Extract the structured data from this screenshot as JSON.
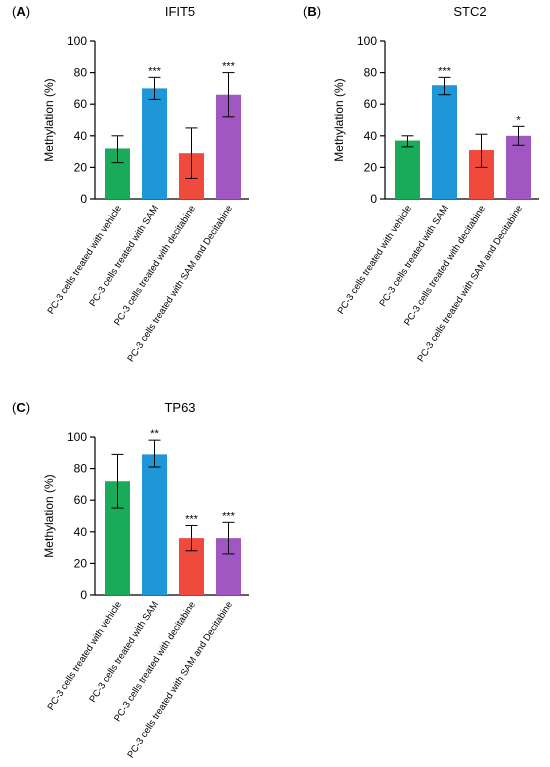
{
  "chart_data": [
    {
      "type": "bar",
      "panel_label": "(A)",
      "panel_letter": "A",
      "title": "IFIT5",
      "ylabel": "Methylation (%)",
      "ylim": [
        0,
        100
      ],
      "yticks": [
        0,
        20,
        40,
        60,
        80,
        100
      ],
      "categories": [
        "PC-3 cells treated with vehicle",
        "PC-3 cells treated with SAM",
        "PC-3 cells treated with decitabine",
        "PC-3 cells treated with SAM and Decitabine"
      ],
      "values": [
        32,
        70,
        29,
        66
      ],
      "err_low": [
        23,
        63,
        13,
        52
      ],
      "err_high": [
        40,
        77,
        45,
        80
      ],
      "significance": [
        "",
        "***",
        "",
        "***"
      ],
      "colors": [
        "#1aab5a",
        "#1e96d8",
        "#f04a3c",
        "#a057c2"
      ]
    },
    {
      "type": "bar",
      "panel_label": "(B)",
      "panel_letter": "B",
      "title": "STC2",
      "ylabel": "Methylation (%)",
      "ylim": [
        0,
        100
      ],
      "yticks": [
        0,
        20,
        40,
        60,
        80,
        100
      ],
      "categories": [
        "PC-3 cells treated with vehicle",
        "PC-3 cells treated with SAM",
        "PC-3 cells treated with decitabine",
        "PC-3 cells treated with SAM and Decitabine"
      ],
      "values": [
        37,
        72,
        31,
        40
      ],
      "err_low": [
        33,
        66,
        20,
        34
      ],
      "err_high": [
        40,
        77,
        41,
        46
      ],
      "significance": [
        "",
        "***",
        "",
        "*"
      ],
      "colors": [
        "#1aab5a",
        "#1e96d8",
        "#f04a3c",
        "#a057c2"
      ]
    },
    {
      "type": "bar",
      "panel_label": "(C)",
      "panel_letter": "C",
      "title": "TP63",
      "ylabel": "Methylation (%)",
      "ylim": [
        0,
        100
      ],
      "yticks": [
        0,
        20,
        40,
        60,
        80,
        100
      ],
      "categories": [
        "PC-3 cells treated with vehicle",
        "PC-3 cells treated with SAM",
        "PC-3 cells treated with decitabine",
        "PC-3 cells treated with SAM and Decitabine"
      ],
      "values": [
        72,
        89,
        36,
        36
      ],
      "err_low": [
        55,
        81,
        28,
        26
      ],
      "err_high": [
        89,
        98,
        44,
        46
      ],
      "significance": [
        "",
        "**",
        "***",
        "***"
      ],
      "colors": [
        "#1aab5a",
        "#1e96d8",
        "#f04a3c",
        "#a057c2"
      ]
    }
  ]
}
